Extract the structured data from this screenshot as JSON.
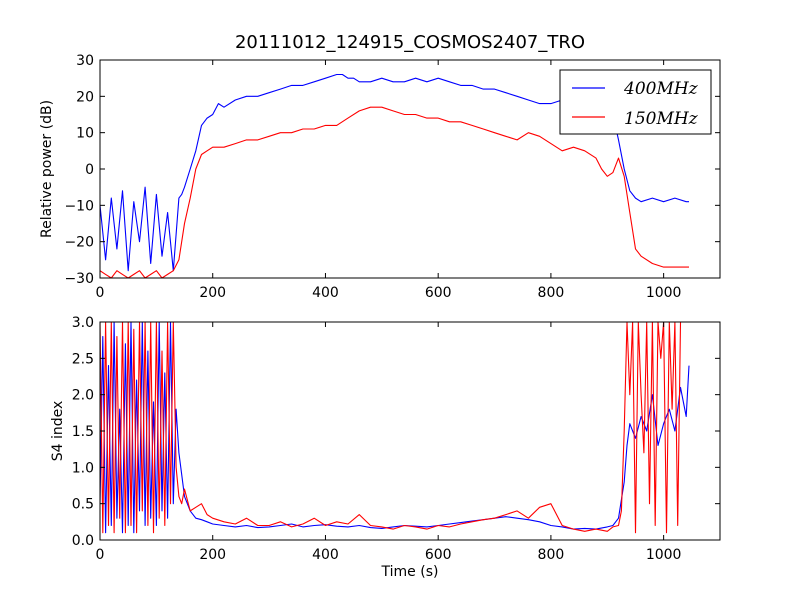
{
  "figure_title": "20111012_124915_COSMOS2407_TRO",
  "colors": {
    "series_400": "#0000ff",
    "series_150": "#ff0000",
    "axis": "#000000"
  },
  "chart_data": [
    {
      "type": "line",
      "ylabel": "Relative power (dB)",
      "xlabel": "",
      "xlim": [
        0,
        1100
      ],
      "ylim": [
        -30,
        30
      ],
      "xticks": [
        0,
        200,
        400,
        600,
        800,
        1000
      ],
      "yticks": [
        -30,
        -20,
        -10,
        0,
        10,
        20,
        30
      ],
      "grid": false,
      "legend": "top-right",
      "series": [
        {
          "name": "400MHz",
          "color": "#0000ff",
          "x": [
            0,
            10,
            20,
            30,
            40,
            50,
            60,
            70,
            80,
            90,
            100,
            110,
            120,
            130,
            135,
            140,
            145,
            150,
            160,
            170,
            180,
            190,
            200,
            210,
            220,
            240,
            260,
            280,
            300,
            320,
            340,
            360,
            380,
            400,
            420,
            430,
            440,
            450,
            460,
            480,
            500,
            520,
            540,
            560,
            580,
            600,
            620,
            640,
            660,
            680,
            700,
            720,
            740,
            760,
            780,
            800,
            820,
            840,
            860,
            880,
            900,
            910,
            920,
            930,
            940,
            950,
            960,
            980,
            1000,
            1020,
            1040,
            1045
          ],
          "y": [
            -10,
            -25,
            -8,
            -22,
            -6,
            -28,
            -9,
            -20,
            -5,
            -26,
            -7,
            -24,
            -12,
            -28,
            -18,
            -8,
            -7,
            -5,
            0,
            5,
            12,
            14,
            15,
            18,
            17,
            19,
            20,
            20,
            21,
            22,
            23,
            23,
            24,
            25,
            26,
            26,
            25,
            25,
            24,
            24,
            25,
            24,
            24,
            25,
            24,
            25,
            24,
            23,
            23,
            22,
            22,
            21,
            20,
            19,
            18,
            18,
            19,
            20,
            19,
            18,
            18,
            15,
            8,
            0,
            -6,
            -8,
            -9,
            -8,
            -9,
            -8,
            -9,
            -9
          ]
        },
        {
          "name": "150MHz",
          "color": "#ff0000",
          "x": [
            0,
            10,
            20,
            30,
            40,
            50,
            60,
            70,
            80,
            90,
            100,
            110,
            120,
            130,
            140,
            150,
            160,
            170,
            180,
            190,
            200,
            220,
            240,
            260,
            280,
            300,
            320,
            340,
            360,
            380,
            400,
            420,
            440,
            460,
            480,
            500,
            520,
            540,
            560,
            580,
            600,
            620,
            640,
            660,
            680,
            700,
            720,
            740,
            760,
            780,
            800,
            820,
            840,
            860,
            880,
            890,
            900,
            910,
            920,
            930,
            940,
            950,
            960,
            980,
            1000,
            1020,
            1040,
            1045
          ],
          "y": [
            -28,
            -29,
            -30,
            -28,
            -29,
            -30,
            -29,
            -28,
            -30,
            -29,
            -28,
            -30,
            -29,
            -28,
            -25,
            -15,
            -8,
            0,
            4,
            5,
            6,
            6,
            7,
            8,
            8,
            9,
            10,
            10,
            11,
            11,
            12,
            12,
            14,
            16,
            17,
            17,
            16,
            15,
            15,
            14,
            14,
            13,
            13,
            12,
            11,
            10,
            9,
            8,
            10,
            9,
            7,
            5,
            6,
            5,
            3,
            0,
            -2,
            -1,
            3,
            -2,
            -12,
            -22,
            -24,
            -26,
            -27,
            -27,
            -27,
            -27
          ]
        }
      ]
    },
    {
      "type": "line",
      "ylabel": "S4 index",
      "xlabel": "Time (s)",
      "xlim": [
        0,
        1100
      ],
      "ylim": [
        0,
        3
      ],
      "xticks": [
        0,
        200,
        400,
        600,
        800,
        1000
      ],
      "yticks": [
        0.0,
        0.5,
        1.0,
        1.5,
        2.0,
        2.5,
        3.0
      ],
      "ytick_labels": [
        "0.0",
        "0.5",
        "1.0",
        "1.5",
        "2.0",
        "2.5",
        "3.0"
      ],
      "grid": false,
      "series": [
        {
          "name": "400MHz",
          "color": "#0000ff",
          "x": [
            0,
            5,
            10,
            15,
            20,
            25,
            30,
            35,
            40,
            45,
            50,
            55,
            60,
            65,
            70,
            75,
            80,
            85,
            90,
            95,
            100,
            105,
            110,
            115,
            120,
            125,
            130,
            135,
            140,
            145,
            150,
            160,
            170,
            180,
            190,
            200,
            220,
            240,
            260,
            280,
            300,
            320,
            340,
            360,
            380,
            400,
            420,
            440,
            460,
            480,
            500,
            520,
            540,
            560,
            580,
            600,
            620,
            640,
            660,
            680,
            700,
            720,
            740,
            760,
            780,
            800,
            820,
            840,
            860,
            880,
            900,
            910,
            920,
            930,
            935,
            940,
            950,
            960,
            970,
            980,
            990,
            1000,
            1010,
            1020,
            1030,
            1040,
            1045
          ],
          "y": [
            0.5,
            2.8,
            0.1,
            2.4,
            0.2,
            3,
            0.3,
            1.8,
            0.1,
            2.7,
            0.2,
            3,
            0.1,
            2.2,
            0.4,
            3,
            0.2,
            2.6,
            0.3,
            1.9,
            0.2,
            3,
            0.4,
            2.3,
            0.3,
            3,
            0.5,
            1.8,
            1.2,
            0.9,
            0.6,
            0.4,
            0.3,
            0.28,
            0.25,
            0.22,
            0.2,
            0.18,
            0.2,
            0.17,
            0.18,
            0.2,
            0.22,
            0.18,
            0.2,
            0.21,
            0.19,
            0.18,
            0.2,
            0.17,
            0.16,
            0.18,
            0.2,
            0.19,
            0.18,
            0.2,
            0.22,
            0.24,
            0.26,
            0.28,
            0.3,
            0.32,
            0.3,
            0.28,
            0.25,
            0.2,
            0.18,
            0.15,
            0.16,
            0.15,
            0.18,
            0.2,
            0.3,
            0.8,
            1.3,
            1.6,
            1.4,
            1.7,
            1.5,
            2,
            1.3,
            1.6,
            1.8,
            1.5,
            2.1,
            1.7,
            2.4
          ]
        },
        {
          "name": "150MHz",
          "color": "#ff0000",
          "x": [
            0,
            5,
            10,
            15,
            20,
            25,
            30,
            35,
            40,
            45,
            50,
            55,
            60,
            65,
            70,
            75,
            80,
            85,
            90,
            95,
            100,
            105,
            110,
            115,
            120,
            125,
            130,
            135,
            140,
            145,
            150,
            160,
            170,
            180,
            190,
            200,
            220,
            240,
            260,
            280,
            300,
            320,
            340,
            360,
            380,
            400,
            420,
            440,
            460,
            480,
            500,
            520,
            540,
            560,
            580,
            600,
            620,
            640,
            660,
            680,
            700,
            720,
            740,
            760,
            780,
            800,
            820,
            840,
            860,
            880,
            900,
            910,
            920,
            925,
            930,
            935,
            940,
            945,
            950,
            955,
            960,
            965,
            970,
            975,
            980,
            985,
            990,
            995,
            1000,
            1005,
            1010,
            1015,
            1020,
            1025,
            1030
          ],
          "y": [
            3,
            0.1,
            3,
            0.2,
            3,
            0.1,
            2.8,
            0.3,
            3,
            0.1,
            3,
            0.2,
            2.9,
            0.1,
            3,
            0.4,
            3,
            0.2,
            3,
            0.1,
            3,
            0.3,
            2.6,
            0.2,
            3,
            0.5,
            3,
            1,
            0.6,
            0.5,
            0.7,
            0.4,
            0.45,
            0.5,
            0.35,
            0.3,
            0.25,
            0.22,
            0.3,
            0.2,
            0.2,
            0.25,
            0.18,
            0.22,
            0.3,
            0.2,
            0.25,
            0.22,
            0.35,
            0.2,
            0.18,
            0.15,
            0.2,
            0.18,
            0.15,
            0.2,
            0.18,
            0.22,
            0.25,
            0.28,
            0.3,
            0.35,
            0.4,
            0.3,
            0.45,
            0.5,
            0.2,
            0.15,
            0.12,
            0.15,
            0.12,
            0.18,
            0.2,
            0.4,
            1.5,
            3,
            2,
            3,
            0.1,
            3,
            2,
            1.2,
            3,
            0.5,
            3,
            0.2,
            3,
            2.5,
            3,
            0.1,
            3,
            1.8,
            3,
            0.2,
            3
          ]
        }
      ]
    }
  ]
}
